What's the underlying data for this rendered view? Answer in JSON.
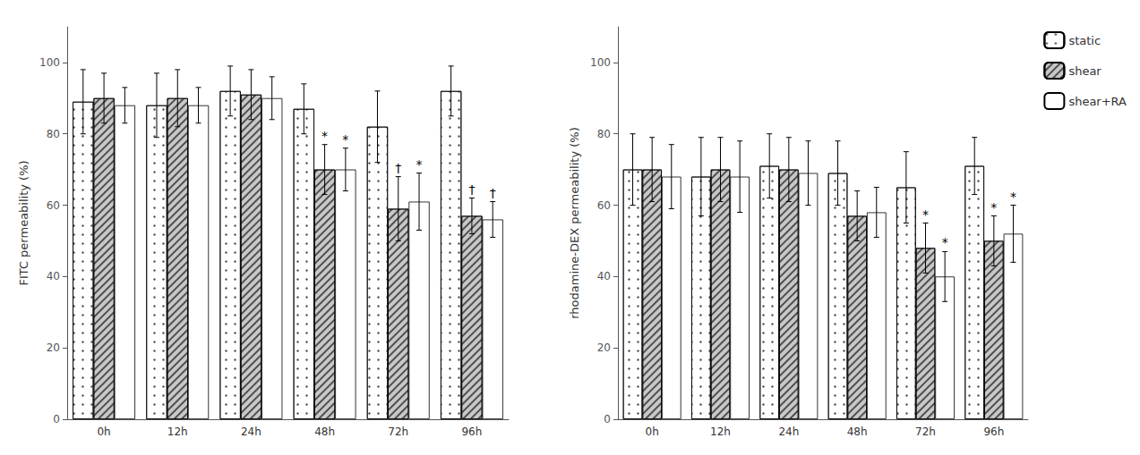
{
  "chart_data": [
    {
      "type": "bar",
      "categories": [
        "0h",
        "12h",
        "24h",
        "48h",
        "72h",
        "96h"
      ],
      "ylabel": "FITC permeability (%)",
      "ylim": [
        0,
        110
      ],
      "yticks": [
        0,
        20,
        40,
        60,
        80,
        100
      ],
      "grid": false,
      "series": [
        {
          "name": "static",
          "color": "#ffffff",
          "values": [
            89,
            88,
            92,
            87,
            82,
            92
          ],
          "errors": [
            9,
            9,
            7,
            7,
            10,
            7
          ]
        },
        {
          "name": "shear",
          "color": "#c8c8c8",
          "values": [
            90,
            90,
            91,
            70,
            59,
            57
          ],
          "errors": [
            7,
            8,
            7,
            7,
            9,
            5
          ]
        },
        {
          "name": "shear+RA",
          "color": "#ffffff",
          "values": [
            88,
            88,
            90,
            70,
            61,
            56
          ],
          "errors": [
            5,
            5,
            6,
            6,
            8,
            5
          ]
        }
      ],
      "annotations": [
        {
          "category": "48h",
          "series": "shear",
          "text": "*"
        },
        {
          "category": "48h",
          "series": "shear+RA",
          "text": "*"
        },
        {
          "category": "72h",
          "series": "shear",
          "text": "†"
        },
        {
          "category": "72h",
          "series": "shear+RA",
          "text": "*"
        },
        {
          "category": "96h",
          "series": "shear",
          "text": "†"
        },
        {
          "category": "96h",
          "series": "shear+RA",
          "text": "†"
        }
      ]
    },
    {
      "type": "bar",
      "categories": [
        "0h",
        "12h",
        "24h",
        "48h",
        "72h",
        "96h"
      ],
      "ylabel": "rhodamine-DEX permeability (%)",
      "ylim": [
        0,
        110
      ],
      "yticks": [
        0,
        20,
        40,
        60,
        80,
        100
      ],
      "grid": false,
      "legend": "upper right",
      "series": [
        {
          "name": "static",
          "color": "#ffffff",
          "values": [
            70,
            68,
            71,
            69,
            65,
            71
          ],
          "errors": [
            10,
            11,
            9,
            9,
            10,
            8
          ]
        },
        {
          "name": "shear",
          "color": "#c8c8c8",
          "values": [
            70,
            70,
            70,
            57,
            48,
            50
          ],
          "errors": [
            9,
            9,
            9,
            7,
            7,
            7
          ]
        },
        {
          "name": "shear+RA",
          "color": "#ffffff",
          "values": [
            68,
            68,
            69,
            58,
            40,
            52
          ],
          "errors": [
            9,
            10,
            9,
            7,
            7,
            8
          ]
        }
      ],
      "annotations": [
        {
          "category": "72h",
          "series": "shear",
          "text": "*"
        },
        {
          "category": "72h",
          "series": "shear+RA",
          "text": "*"
        },
        {
          "category": "96h",
          "series": "shear",
          "text": "*"
        },
        {
          "category": "96h",
          "series": "shear+RA",
          "text": "*"
        }
      ]
    }
  ]
}
